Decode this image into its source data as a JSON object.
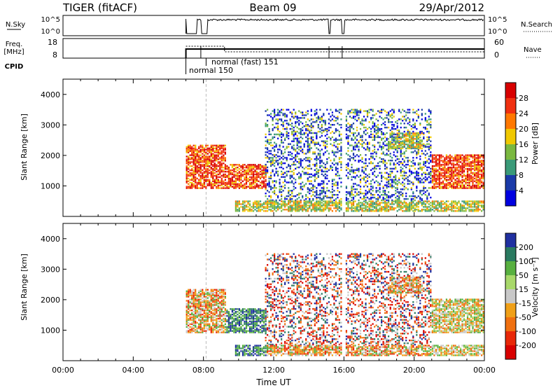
{
  "header": {
    "radar": "TIGER (fitACF)",
    "beam": "Beam 09",
    "date": "29/Apr/2012"
  },
  "chart_data": [
    {
      "type": "line",
      "name": "noise-panel",
      "left_label": "N.Sky",
      "right_label": "N.Search",
      "left_ticks": [
        "10^5",
        "10^0"
      ],
      "right_ticks": [
        "10^5",
        "10^0"
      ],
      "note": "Noise levels vs time; drops near 07:05, 07:50, 15:15, 15:50 UT"
    },
    {
      "type": "line",
      "name": "freq-nave-panel",
      "left_label_top": "Freq.",
      "left_label_bottom": "[MHz]",
      "right_label": "Nave",
      "left_ticks": [
        "18",
        "8"
      ],
      "right_ticks": [
        "60",
        "0"
      ],
      "cpid_label": "CPID",
      "cpid_annotations": [
        "normal (fast) 151",
        "normal 150"
      ],
      "data_start_hour": 7.0
    },
    {
      "type": "heatmap",
      "name": "power-panel",
      "ylabel": "Slant Range [km]",
      "ylim": [
        0,
        4500
      ],
      "yticks": [
        1000,
        2000,
        3000,
        4000
      ],
      "xlim": [
        0,
        24
      ],
      "colorbar": {
        "label": "Power [dB]",
        "ticks": [
          "28",
          "24",
          "20",
          "16",
          "12",
          "8",
          "4"
        ],
        "colors": [
          "#d80000",
          "#f03010",
          "#ff7800",
          "#f0c800",
          "#7ab840",
          "#3a9a78",
          "#1a3aa8",
          "#0000e0"
        ]
      },
      "echo_regions": [
        {
          "t": [
            7.0,
            9.2
          ],
          "range": [
            900,
            2300
          ],
          "level": "high"
        },
        {
          "t": [
            9.3,
            11.5
          ],
          "range": [
            900,
            1700
          ],
          "level": "high"
        },
        {
          "t": [
            11.5,
            21.0
          ],
          "range": [
            500,
            3500
          ],
          "level": "low-scatter"
        },
        {
          "t": [
            18.5,
            20.5
          ],
          "range": [
            2200,
            2700
          ],
          "level": "medium"
        },
        {
          "t": [
            21.0,
            24.0
          ],
          "range": [
            900,
            2000
          ],
          "level": "high"
        },
        {
          "t": [
            9.8,
            24.0
          ],
          "range": [
            150,
            500
          ],
          "level": "medium"
        }
      ]
    },
    {
      "type": "heatmap",
      "name": "velocity-panel",
      "ylabel": "Slant Range [km]",
      "ylim": [
        0,
        4500
      ],
      "yticks": [
        1000,
        2000,
        3000,
        4000
      ],
      "xlim": [
        0,
        24
      ],
      "xticks": [
        "00:00",
        "04:00",
        "08:00",
        "12:00",
        "16:00",
        "20:00",
        "00:00"
      ],
      "xlabel": "Time UT",
      "colorbar": {
        "label": "Velocity [m s⁻¹]",
        "ticks": [
          "200",
          "100",
          "50",
          "15",
          "-15",
          "-50",
          "-100",
          "-200"
        ],
        "colors": [
          "#2030a0",
          "#2a7a60",
          "#58b040",
          "#a8d86a",
          "#c8c8c8",
          "#f0a018",
          "#f07010",
          "#e82808",
          "#d80000"
        ]
      }
    }
  ]
}
